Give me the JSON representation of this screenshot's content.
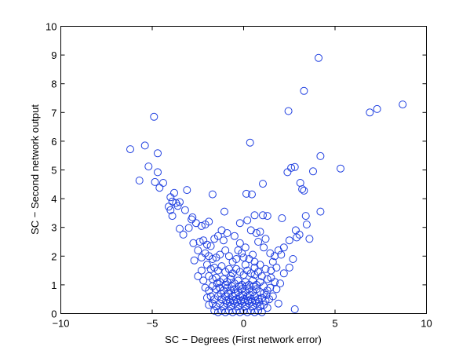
{
  "chart_data": {
    "type": "scatter",
    "title": "",
    "xlabel": "SC − Degrees (First network error)",
    "ylabel": "SC − Second network output",
    "xlim": [
      -10,
      10
    ],
    "ylim": [
      0,
      10
    ],
    "xticks": [
      -10,
      -5,
      0,
      5,
      10
    ],
    "yticks": [
      0,
      1,
      2,
      3,
      4,
      5,
      6,
      7,
      8,
      9,
      10
    ],
    "xtick_labels": [
      "−10",
      "−5",
      "0",
      "5",
      "10"
    ],
    "ytick_labels": [
      "0",
      "1",
      "2",
      "3",
      "4",
      "5",
      "6",
      "7",
      "8",
      "9",
      "10"
    ],
    "grid": false,
    "marker": "open-circle",
    "series_color": "#1f3fe0",
    "points": [
      [
        4.1,
        8.9
      ],
      [
        3.3,
        7.75
      ],
      [
        8.7,
        7.28
      ],
      [
        7.3,
        7.12
      ],
      [
        6.9,
        7.0
      ],
      [
        2.45,
        7.05
      ],
      [
        -4.9,
        6.85
      ],
      [
        0.35,
        5.95
      ],
      [
        -6.2,
        5.72
      ],
      [
        -5.4,
        5.85
      ],
      [
        -4.7,
        5.58
      ],
      [
        2.8,
        5.1
      ],
      [
        2.6,
        5.07
      ],
      [
        5.3,
        5.05
      ],
      [
        4.2,
        5.48
      ],
      [
        -5.2,
        5.12
      ],
      [
        3.8,
        4.95
      ],
      [
        2.4,
        4.92
      ],
      [
        -4.7,
        4.92
      ],
      [
        -5.7,
        4.63
      ],
      [
        -4.85,
        4.58
      ],
      [
        -4.4,
        4.55
      ],
      [
        3.1,
        4.55
      ],
      [
        3.2,
        4.33
      ],
      [
        3.3,
        4.28
      ],
      [
        -3.1,
        4.3
      ],
      [
        -4.6,
        4.38
      ],
      [
        1.05,
        4.52
      ],
      [
        -1.7,
        4.15
      ],
      [
        0.15,
        4.17
      ],
      [
        0.45,
        4.15
      ],
      [
        -4.0,
        4.05
      ],
      [
        -3.8,
        4.2
      ],
      [
        -3.9,
        3.9
      ],
      [
        -3.7,
        3.85
      ],
      [
        -4.0,
        3.6
      ],
      [
        -3.6,
        3.75
      ],
      [
        -3.5,
        3.88
      ],
      [
        -3.2,
        3.6
      ],
      [
        -4.1,
        3.72
      ],
      [
        -3.9,
        3.4
      ],
      [
        -2.8,
        3.35
      ],
      [
        -2.85,
        3.28
      ],
      [
        -3.0,
        2.98
      ],
      [
        -2.6,
        3.15
      ],
      [
        -2.3,
        3.05
      ],
      [
        -2.1,
        3.1
      ],
      [
        -1.9,
        3.2
      ],
      [
        -1.05,
        3.55
      ],
      [
        0.6,
        3.42
      ],
      [
        1.05,
        3.42
      ],
      [
        1.3,
        3.4
      ],
      [
        2.1,
        3.32
      ],
      [
        3.4,
        3.4
      ],
      [
        4.2,
        3.55
      ],
      [
        3.45,
        3.1
      ],
      [
        2.85,
        2.9
      ],
      [
        2.9,
        2.65
      ],
      [
        3.05,
        2.75
      ],
      [
        2.5,
        2.55
      ],
      [
        2.2,
        2.3
      ],
      [
        1.9,
        2.2
      ],
      [
        2.05,
        2.05
      ],
      [
        1.7,
        2.0
      ],
      [
        1.45,
        2.1
      ],
      [
        1.1,
        2.3
      ],
      [
        0.8,
        2.5
      ],
      [
        0.4,
        2.9
      ],
      [
        0.7,
        2.8
      ],
      [
        0.9,
        2.85
      ],
      [
        1.2,
        2.6
      ],
      [
        -3.3,
        2.75
      ],
      [
        -2.75,
        2.45
      ],
      [
        -2.4,
        2.5
      ],
      [
        -2.2,
        2.55
      ],
      [
        -2.0,
        2.4
      ],
      [
        -1.8,
        2.35
      ],
      [
        -1.6,
        2.6
      ],
      [
        -1.4,
        2.7
      ],
      [
        -1.1,
        2.55
      ],
      [
        -0.9,
        2.8
      ],
      [
        -0.5,
        2.7
      ],
      [
        -0.2,
        2.45
      ],
      [
        0.1,
        2.3
      ],
      [
        -0.1,
        2.1
      ],
      [
        -2.5,
        2.2
      ],
      [
        -2.7,
        1.85
      ],
      [
        -2.3,
        1.95
      ],
      [
        -2.1,
        2.1
      ],
      [
        -1.9,
        2.0
      ],
      [
        -1.7,
        1.9
      ],
      [
        -1.5,
        1.95
      ],
      [
        -1.3,
        2.05
      ],
      [
        -1.0,
        2.2
      ],
      [
        -0.8,
        2.0
      ],
      [
        -0.6,
        1.8
      ],
      [
        -0.4,
        1.9
      ],
      [
        0.3,
        1.9
      ],
      [
        0.6,
        1.8
      ],
      [
        0.9,
        1.7
      ],
      [
        1.2,
        1.55
      ],
      [
        1.5,
        1.5
      ],
      [
        1.8,
        1.6
      ],
      [
        2.5,
        1.6
      ],
      [
        2.7,
        1.9
      ],
      [
        0.1,
        1.7
      ],
      [
        -2.0,
        1.7
      ],
      [
        -1.8,
        1.55
      ],
      [
        -1.6,
        1.6
      ],
      [
        -1.4,
        1.5
      ],
      [
        -1.2,
        1.65
      ],
      [
        -1.0,
        1.45
      ],
      [
        -0.8,
        1.55
      ],
      [
        -0.6,
        1.4
      ],
      [
        -0.4,
        1.55
      ],
      [
        -0.2,
        1.45
      ],
      [
        0.0,
        1.35
      ],
      [
        0.2,
        1.5
      ],
      [
        0.4,
        1.4
      ],
      [
        0.6,
        1.35
      ],
      [
        0.8,
        1.45
      ],
      [
        1.0,
        1.3
      ],
      [
        1.3,
        1.2
      ],
      [
        1.5,
        1.25
      ],
      [
        1.7,
        1.1
      ],
      [
        -1.9,
        1.3
      ],
      [
        -1.7,
        1.2
      ],
      [
        -1.5,
        1.25
      ],
      [
        -1.3,
        1.1
      ],
      [
        -1.1,
        1.2
      ],
      [
        -0.9,
        1.1
      ],
      [
        -0.7,
        1.2
      ],
      [
        -0.5,
        1.05
      ],
      [
        -0.3,
        1.15
      ],
      [
        -0.1,
        1.0
      ],
      [
        0.1,
        1.1
      ],
      [
        0.3,
        1.0
      ],
      [
        0.5,
        1.15
      ],
      [
        0.7,
        1.0
      ],
      [
        0.9,
        1.1
      ],
      [
        1.1,
        0.95
      ],
      [
        -2.1,
        0.9
      ],
      [
        -1.9,
        0.8
      ],
      [
        -1.7,
        0.95
      ],
      [
        -1.5,
        0.85
      ],
      [
        -1.3,
        0.9
      ],
      [
        -1.1,
        0.8
      ],
      [
        -0.9,
        0.9
      ],
      [
        -0.7,
        0.8
      ],
      [
        -0.5,
        0.85
      ],
      [
        -0.3,
        0.75
      ],
      [
        -0.1,
        0.85
      ],
      [
        0.1,
        0.75
      ],
      [
        0.3,
        0.85
      ],
      [
        0.5,
        0.75
      ],
      [
        0.7,
        0.85
      ],
      [
        0.9,
        0.75
      ],
      [
        1.1,
        0.7
      ],
      [
        1.3,
        0.8
      ],
      [
        1.6,
        0.6
      ],
      [
        1.9,
        0.35
      ],
      [
        -2.0,
        0.55
      ],
      [
        -1.8,
        0.6
      ],
      [
        -1.6,
        0.5
      ],
      [
        -1.4,
        0.6
      ],
      [
        -1.2,
        0.5
      ],
      [
        -1.0,
        0.6
      ],
      [
        -0.8,
        0.5
      ],
      [
        -0.6,
        0.6
      ],
      [
        -0.4,
        0.5
      ],
      [
        -0.2,
        0.6
      ],
      [
        0.0,
        0.5
      ],
      [
        0.2,
        0.6
      ],
      [
        0.4,
        0.5
      ],
      [
        0.6,
        0.6
      ],
      [
        0.8,
        0.5
      ],
      [
        1.0,
        0.55
      ],
      [
        1.2,
        0.45
      ],
      [
        1.4,
        0.5
      ],
      [
        -1.9,
        0.3
      ],
      [
        -1.7,
        0.35
      ],
      [
        -1.5,
        0.25
      ],
      [
        -1.3,
        0.35
      ],
      [
        -1.1,
        0.25
      ],
      [
        -0.9,
        0.35
      ],
      [
        -0.7,
        0.25
      ],
      [
        -0.5,
        0.35
      ],
      [
        -0.3,
        0.25
      ],
      [
        -0.1,
        0.35
      ],
      [
        0.1,
        0.25
      ],
      [
        0.3,
        0.35
      ],
      [
        0.5,
        0.25
      ],
      [
        0.7,
        0.35
      ],
      [
        0.9,
        0.25
      ],
      [
        1.1,
        0.3
      ],
      [
        1.3,
        0.2
      ],
      [
        -1.6,
        0.1
      ],
      [
        -1.4,
        0.05
      ],
      [
        -1.2,
        0.1
      ],
      [
        -1.0,
        0.05
      ],
      [
        -0.8,
        0.1
      ],
      [
        -0.6,
        0.05
      ],
      [
        -0.4,
        0.1
      ],
      [
        -0.2,
        0.05
      ],
      [
        0.0,
        0.1
      ],
      [
        0.2,
        0.05
      ],
      [
        0.4,
        0.1
      ],
      [
        0.6,
        0.05
      ],
      [
        0.8,
        0.1
      ],
      [
        1.0,
        0.05
      ],
      [
        2.8,
        0.15
      ],
      [
        -1.0,
        1.0
      ],
      [
        -0.85,
        0.7
      ],
      [
        -0.65,
        0.95
      ],
      [
        -0.45,
        0.7
      ],
      [
        -0.25,
        0.95
      ],
      [
        -0.05,
        0.65
      ],
      [
        0.15,
        0.95
      ],
      [
        0.35,
        0.65
      ],
      [
        0.55,
        0.95
      ],
      [
        -0.75,
        0.4
      ],
      [
        -0.55,
        0.45
      ],
      [
        -0.35,
        0.4
      ],
      [
        -0.15,
        0.45
      ],
      [
        0.05,
        0.4
      ],
      [
        0.25,
        0.45
      ],
      [
        0.45,
        0.4
      ],
      [
        0.65,
        0.45
      ],
      [
        -0.95,
        0.45
      ],
      [
        0.85,
        0.4
      ],
      [
        -1.25,
        0.7
      ],
      [
        1.25,
        0.65
      ],
      [
        -1.45,
        1.05
      ],
      [
        1.45,
        0.9
      ],
      [
        -2.3,
        1.5
      ],
      [
        -2.5,
        1.3
      ],
      [
        -2.2,
        1.15
      ],
      [
        2.2,
        1.4
      ],
      [
        2.0,
        1.05
      ],
      [
        1.8,
        0.85
      ],
      [
        -0.3,
        2.2
      ],
      [
        0.5,
        2.05
      ],
      [
        -0.2,
        3.15
      ],
      [
        0.2,
        3.25
      ],
      [
        -1.2,
        2.9
      ],
      [
        -3.5,
        2.95
      ],
      [
        3.6,
        2.6
      ],
      [
        0.0,
        1.95
      ],
      [
        -0.7,
        1.3
      ],
      [
        0.6,
        1.6
      ],
      [
        1.6,
        1.8
      ]
    ]
  }
}
